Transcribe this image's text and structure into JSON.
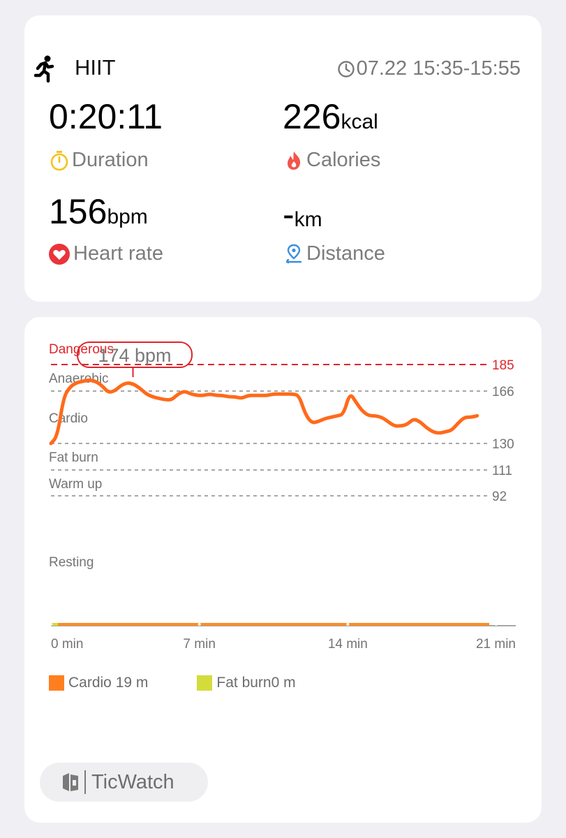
{
  "workout": {
    "activity": "HIIT",
    "time_range": "07.22 15:35-15:55",
    "icons": {
      "activity": "running-person-icon",
      "time": "clock-icon"
    }
  },
  "stats": {
    "duration": {
      "value": "0:20:11",
      "unit": "",
      "label": "Duration",
      "icon": "stopwatch-icon",
      "icon_color": "#f5c31c"
    },
    "calories": {
      "value": "226",
      "unit": "kcal",
      "label": "Calories",
      "icon": "flame-icon",
      "icon_color": "#f2554a"
    },
    "heart_rate": {
      "value": "156",
      "unit": "bpm",
      "label": "Heart rate",
      "icon": "heart-icon",
      "icon_color": "#e8353b"
    },
    "distance": {
      "value": "-",
      "unit": "km",
      "label": "Distance",
      "icon": "location-pin-icon",
      "icon_color": "#3b8ee0"
    }
  },
  "chart_data": {
    "type": "line",
    "xlabel": "",
    "ylabel": "",
    "x_ticks": [
      "0 min",
      "7 min",
      "14 min",
      "21 min"
    ],
    "xlim": [
      0,
      21
    ],
    "zones": [
      {
        "name": "Dangerous",
        "threshold": 185,
        "color": "#e0242b"
      },
      {
        "name": "Anaerobic",
        "threshold": 166,
        "color": "#777777"
      },
      {
        "name": "Cardio",
        "threshold": 130,
        "color": "#777777"
      },
      {
        "name": "Fat burn",
        "threshold": 111,
        "color": "#777777"
      },
      {
        "name": "Warm up",
        "threshold": 92,
        "color": "#777777"
      },
      {
        "name": "Resting",
        "threshold": null,
        "color": "#777777"
      }
    ],
    "threshold_labels": [
      "185",
      "166",
      "130",
      "111",
      "92"
    ],
    "max_marker": {
      "label": "174 bpm",
      "value": 174,
      "x": 4
    },
    "series": [
      {
        "color": "#ff6a1a",
        "x": [
          0,
          0.3,
          0.6,
          0.9,
          1.2,
          1.5,
          1.8,
          2.1,
          2.4,
          2.7,
          3.0,
          3.3,
          3.6,
          3.9,
          4.2,
          4.5,
          4.8,
          5.1,
          5.4,
          5.7,
          6.0,
          6.3,
          6.6,
          6.9,
          7.2,
          7.5,
          7.8,
          8.1,
          8.4,
          8.7,
          9.0,
          9.3,
          9.6,
          9.9,
          10.2,
          10.5,
          10.8,
          11.1,
          11.4,
          11.7,
          12.0,
          12.3,
          12.6,
          12.9,
          13.2,
          13.5,
          13.8,
          14.1,
          14.4,
          14.7,
          15.0,
          15.3,
          15.6,
          15.9,
          16.2,
          16.5,
          16.8,
          17.1,
          17.4,
          17.7,
          18.0,
          18.3,
          18.6,
          18.9,
          19.2,
          19.5,
          19.8,
          20.1
        ],
        "values": [
          130,
          135,
          162,
          169,
          172,
          173,
          174,
          173,
          170,
          165,
          166,
          170,
          172,
          171,
          168,
          164,
          162,
          161,
          160,
          160,
          164,
          166,
          164,
          163,
          163,
          164,
          163,
          163,
          162,
          162,
          161,
          163,
          163,
          163,
          163,
          164,
          164,
          164,
          164,
          163,
          150,
          144,
          145,
          147,
          148,
          149,
          150,
          165,
          158,
          152,
          149,
          149,
          148,
          145,
          142,
          142,
          143,
          147,
          145,
          141,
          138,
          137,
          138,
          139,
          144,
          148,
          148,
          149
        ]
      }
    ],
    "legend": [
      {
        "label": "Cardio 19 m",
        "color": "#ff7f1f"
      },
      {
        "label": "Fat burn0 m",
        "color": "#d4dc3c"
      }
    ],
    "baseline_colors": [
      "#ff8d26",
      "#d4dc3c"
    ],
    "grid": "zone threshold lines, dashed"
  },
  "brand": {
    "name": "TicWatch",
    "icon": "ticwatch-logo-icon"
  }
}
